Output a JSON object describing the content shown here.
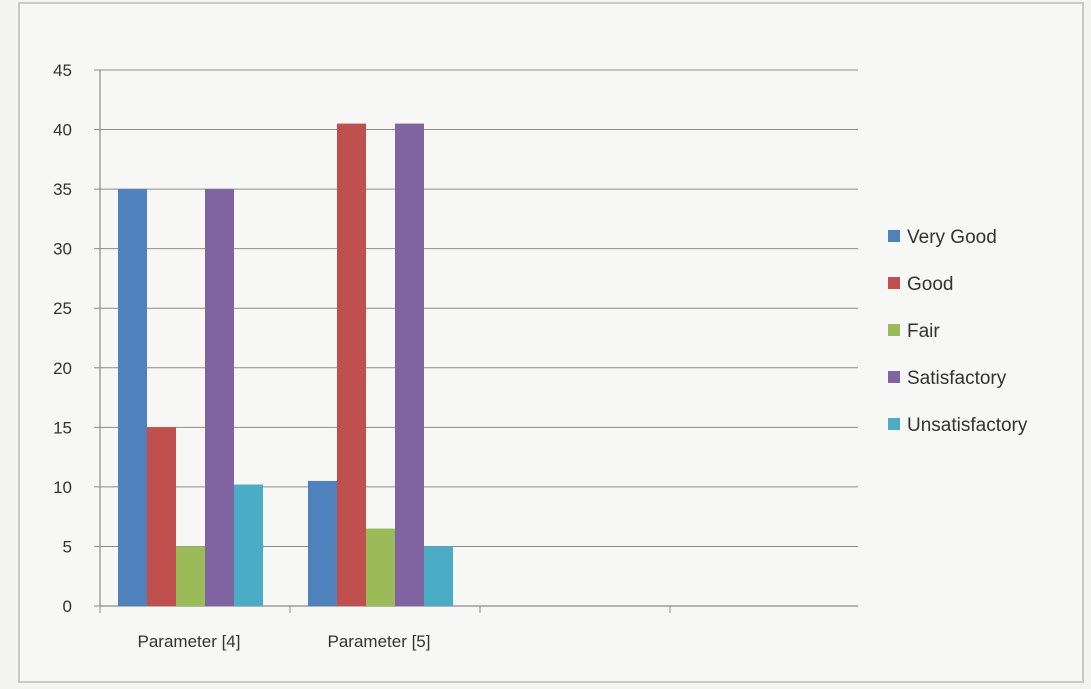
{
  "chart_data": {
    "type": "bar",
    "title": "",
    "xlabel": "",
    "ylabel": "",
    "ylim": [
      0,
      45
    ],
    "y_ticks": [
      0,
      5,
      10,
      15,
      20,
      25,
      30,
      35,
      40,
      45
    ],
    "grid": "horizontal",
    "legend_position": "right",
    "categories": [
      "Parameter [4]",
      "Parameter [5]"
    ],
    "series": [
      {
        "name": "Very Good",
        "color": "#4f81bd",
        "values": [
          35,
          10.5
        ]
      },
      {
        "name": "Good",
        "color": "#c0504d",
        "values": [
          15,
          40.5
        ]
      },
      {
        "name": "Fair",
        "color": "#9bbb59",
        "values": [
          5,
          6.5
        ]
      },
      {
        "name": "Satisfactory",
        "color": "#8064a2",
        "values": [
          35,
          40.5
        ]
      },
      {
        "name": "Unsatisfactory",
        "color": "#4bacc6",
        "values": [
          10.2,
          5
        ]
      }
    ]
  }
}
